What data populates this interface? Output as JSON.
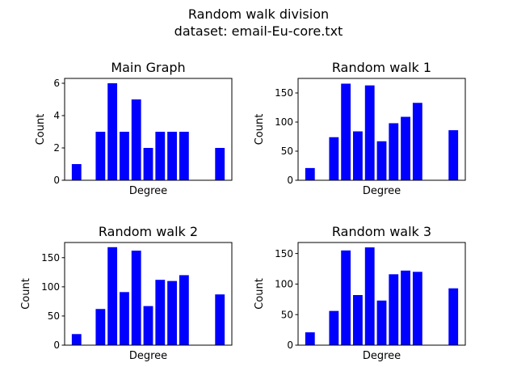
{
  "suptitle": {
    "line1": "Random walk division",
    "line2": "dataset: email-Eu-core.txt"
  },
  "colors": {
    "bar": "#0000ff",
    "axis": "#000000"
  },
  "chart_data": [
    {
      "type": "bar",
      "title": "Main Graph",
      "xlabel": "Degree",
      "ylabel": "Count",
      "x": [
        1,
        3,
        4,
        5,
        6,
        7,
        8,
        9,
        10,
        11,
        13
      ],
      "values": [
        1,
        3,
        6,
        3,
        5,
        2,
        3,
        3,
        3,
        0,
        2
      ],
      "ylim": [
        0,
        6.3
      ],
      "yticks": [
        0,
        2,
        4,
        6
      ],
      "xticks_shown": false,
      "grid": false
    },
    {
      "type": "bar",
      "title": "Random walk 1",
      "xlabel": "Degree",
      "ylabel": "Count",
      "x": [
        1,
        3,
        4,
        5,
        6,
        7,
        8,
        9,
        10,
        11,
        13
      ],
      "values": [
        21,
        74,
        166,
        84,
        163,
        67,
        98,
        109,
        133,
        0,
        86
      ],
      "ylim": [
        0,
        175
      ],
      "yticks": [
        0,
        50,
        100,
        150
      ],
      "xticks_shown": false,
      "grid": false
    },
    {
      "type": "bar",
      "title": "Random walk 2",
      "xlabel": "Degree",
      "ylabel": "Count",
      "x": [
        1,
        3,
        4,
        5,
        6,
        7,
        8,
        9,
        10,
        11,
        13
      ],
      "values": [
        19,
        62,
        168,
        91,
        162,
        67,
        112,
        110,
        120,
        0,
        87
      ],
      "ylim": [
        0,
        176
      ],
      "yticks": [
        0,
        50,
        100,
        150
      ],
      "xticks_shown": false,
      "grid": false
    },
    {
      "type": "bar",
      "title": "Random walk 3",
      "xlabel": "Degree",
      "ylabel": "Count",
      "x": [
        1,
        3,
        4,
        5,
        6,
        7,
        8,
        9,
        10,
        11,
        13
      ],
      "values": [
        21,
        56,
        155,
        82,
        160,
        73,
        116,
        122,
        120,
        0,
        93
      ],
      "ylim": [
        0,
        168
      ],
      "yticks": [
        0,
        50,
        100,
        150
      ],
      "xticks_shown": false,
      "grid": false
    }
  ]
}
